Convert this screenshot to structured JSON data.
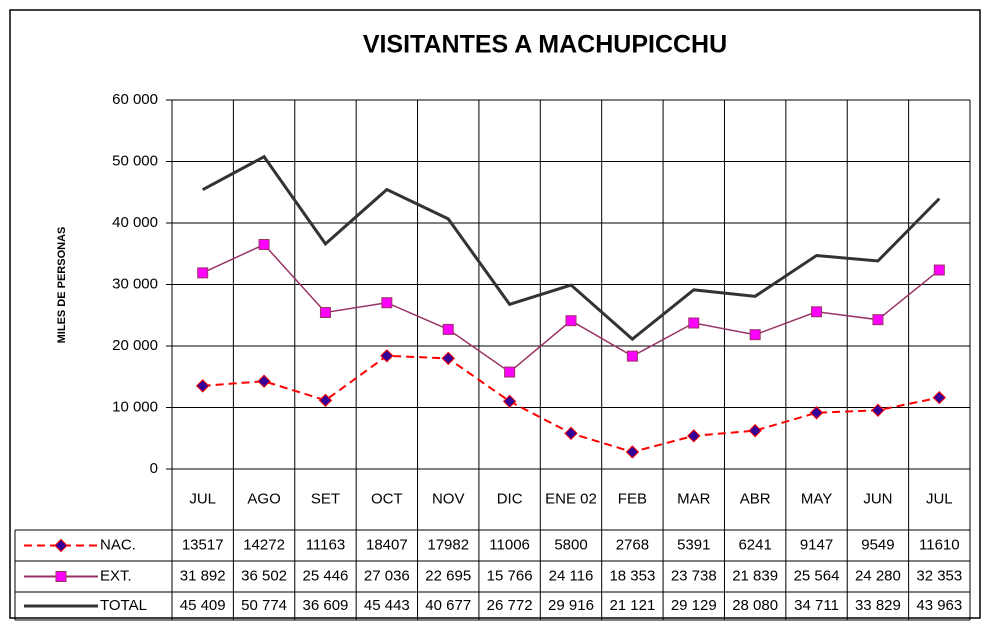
{
  "chart_data": {
    "type": "line",
    "title": "VISITANTES A MACHUPICCHU",
    "y_label": "MILES DE PERSONAS",
    "categories": [
      "JUL",
      "AGO",
      "SET",
      "OCT",
      "NOV",
      "DIC",
      "ENE 02",
      "FEB",
      "MAR",
      "ABR",
      "MAY",
      "JUN",
      "JUL"
    ],
    "series": [
      {
        "name": "NAC.",
        "color": "#ff0000",
        "marker": "diamond",
        "marker_color": "#330099",
        "dash": true,
        "values": [
          13517,
          14272,
          11163,
          18407,
          17982,
          11006,
          5800,
          2768,
          5391,
          6241,
          9147,
          9549,
          11610
        ]
      },
      {
        "name": "EXT.",
        "color": "#993366",
        "marker": "square",
        "marker_color": "#ff00ff",
        "dash": false,
        "values": [
          31892,
          36502,
          25446,
          27036,
          22695,
          15766,
          24116,
          18353,
          23738,
          21839,
          25564,
          24280,
          32353
        ],
        "value_labels": [
          "31 892",
          "36 502",
          "25 446",
          "27 036",
          "22 695",
          "15 766",
          "24 116",
          "18 353",
          "23 738",
          "21 839",
          "25 564",
          "24 280",
          "32 353"
        ]
      },
      {
        "name": "TOTAL",
        "color": "#333333",
        "marker": "none",
        "dash": false,
        "values": [
          45409,
          50774,
          36609,
          45443,
          40677,
          26772,
          29916,
          21121,
          29129,
          28080,
          34711,
          33829,
          43963
        ],
        "value_labels": [
          "45 409",
          "50 774",
          "36 609",
          "45 443",
          "40 677",
          "26 772",
          "29 916",
          "21 121",
          "29 129",
          "28 080",
          "34 711",
          "33 829",
          "43 963"
        ]
      }
    ],
    "ylim": [
      0,
      60000
    ],
    "yticks": [
      0,
      {
        "value": 10000,
        "label": "10 000"
      },
      {
        "value": 20000,
        "label": "20 000"
      },
      {
        "value": 30000,
        "label": "30 000"
      },
      {
        "value": 40000,
        "label": "40 000"
      },
      {
        "value": 50000,
        "label": "50 000"
      },
      {
        "value": 60000,
        "label": "60 000"
      }
    ],
    "grid": true
  }
}
